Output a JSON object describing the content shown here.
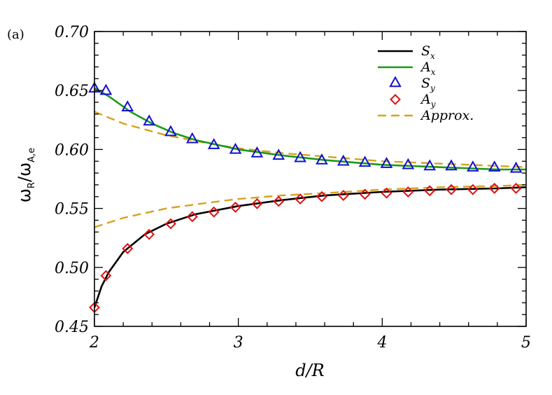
{
  "chart_data": {
    "type": "line",
    "panel_label": "(a)",
    "xlabel": "d/R",
    "ylabel": {
      "main": "ω",
      "sub1": "R",
      "sep": "/ω",
      "sub2": "A,e"
    },
    "xlim": [
      2,
      5
    ],
    "ylim": [
      0.45,
      0.7
    ],
    "x_ticks": [
      2,
      3,
      4,
      5
    ],
    "x_tick_labels": [
      "2",
      "3",
      "4",
      "5"
    ],
    "y_ticks": [
      0.45,
      0.5,
      0.55,
      0.6,
      0.65,
      0.7
    ],
    "y_tick_labels": [
      "0.45",
      "0.50",
      "0.55",
      "0.60",
      "0.65",
      "0.70"
    ],
    "grid": false,
    "legend_position": "top-right",
    "colors": {
      "Sx": "#000000",
      "Ax": "#1a9a1a",
      "Sy": "#1010d0",
      "Ay": "#e01010",
      "approx": "#d9a020"
    },
    "series": [
      {
        "key": "Sx",
        "label": "S",
        "sub": "x",
        "style": "line",
        "color": "#000000",
        "x": [
          2.0,
          2.05,
          2.1,
          2.2,
          2.35,
          2.5,
          2.7,
          3.0,
          3.3,
          3.6,
          4.0,
          4.4,
          4.8,
          5.0
        ],
        "y": [
          0.466,
          0.484,
          0.496,
          0.513,
          0.528,
          0.537,
          0.545,
          0.552,
          0.557,
          0.561,
          0.564,
          0.566,
          0.567,
          0.568
        ]
      },
      {
        "key": "Ax",
        "label": "A",
        "sub": "x",
        "style": "line",
        "color": "#1a9a1a",
        "x": [
          2.0,
          2.1,
          2.25,
          2.4,
          2.55,
          2.7,
          3.0,
          3.3,
          3.6,
          4.0,
          4.4,
          4.8,
          5.0
        ],
        "y": [
          0.652,
          0.645,
          0.632,
          0.622,
          0.614,
          0.608,
          0.6,
          0.595,
          0.591,
          0.587,
          0.585,
          0.583,
          0.583
        ]
      },
      {
        "key": "Sy",
        "label": "S",
        "sub": "y",
        "style": "triangle",
        "color": "#1010d0",
        "x": [
          2.0,
          2.08,
          2.23,
          2.38,
          2.53,
          2.68,
          2.83,
          2.98,
          3.13,
          3.28,
          3.43,
          3.58,
          3.73,
          3.88,
          4.03,
          4.18,
          4.33,
          4.48,
          4.63,
          4.78,
          4.93
        ],
        "y": [
          0.652,
          0.65,
          0.636,
          0.624,
          0.615,
          0.609,
          0.604,
          0.6,
          0.597,
          0.595,
          0.593,
          0.591,
          0.59,
          0.589,
          0.588,
          0.587,
          0.586,
          0.586,
          0.585,
          0.585,
          0.584
        ]
      },
      {
        "key": "Ay",
        "label": "A",
        "sub": "y",
        "style": "diamond",
        "color": "#e01010",
        "x": [
          2.0,
          2.08,
          2.23,
          2.38,
          2.53,
          2.68,
          2.83,
          2.98,
          3.13,
          3.28,
          3.43,
          3.58,
          3.73,
          3.88,
          4.03,
          4.18,
          4.33,
          4.48,
          4.63,
          4.78,
          4.93
        ],
        "y": [
          0.466,
          0.493,
          0.516,
          0.528,
          0.537,
          0.543,
          0.547,
          0.551,
          0.554,
          0.556,
          0.558,
          0.56,
          0.561,
          0.562,
          0.563,
          0.564,
          0.565,
          0.566,
          0.566,
          0.567,
          0.567
        ]
      },
      {
        "key": "approx_upper",
        "label": "Approx.",
        "style": "dashed",
        "color": "#d9a020",
        "x": [
          2.0,
          2.2,
          2.5,
          2.8,
          3.0,
          3.3,
          3.6,
          4.0,
          4.4,
          4.8,
          5.0
        ],
        "y": [
          0.632,
          0.622,
          0.612,
          0.605,
          0.601,
          0.597,
          0.594,
          0.59,
          0.588,
          0.586,
          0.585
        ]
      },
      {
        "key": "approx_lower",
        "label": "Approx.",
        "style": "dashed",
        "color": "#d9a020",
        "x": [
          2.0,
          2.2,
          2.5,
          2.8,
          3.0,
          3.3,
          3.6,
          4.0,
          4.4,
          4.8,
          5.0
        ],
        "y": [
          0.534,
          0.542,
          0.55,
          0.555,
          0.558,
          0.561,
          0.563,
          0.566,
          0.568,
          0.569,
          0.57
        ]
      }
    ],
    "legend": [
      {
        "label": "S",
        "sub": "x",
        "style": "line",
        "color": "#000000"
      },
      {
        "label": "A",
        "sub": "x",
        "style": "line",
        "color": "#1a9a1a"
      },
      {
        "label": "S",
        "sub": "y",
        "style": "triangle",
        "color": "#1010d0"
      },
      {
        "label": "A",
        "sub": "y",
        "style": "diamond",
        "color": "#e01010"
      },
      {
        "label": "Approx.",
        "sub": "",
        "style": "dashed",
        "color": "#d9a020"
      }
    ]
  }
}
